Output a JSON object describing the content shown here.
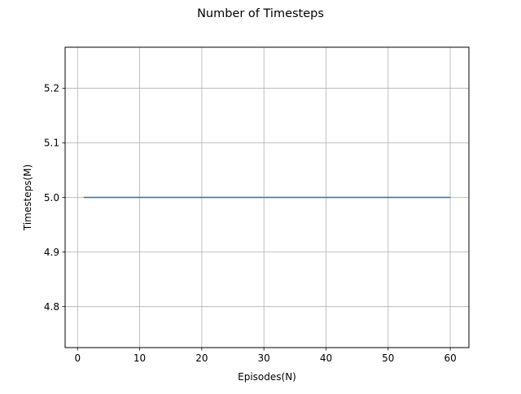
{
  "chart_data": {
    "type": "line",
    "title": "Number of Timesteps",
    "xlabel": "Episodes(N)",
    "ylabel": "Timesteps(M)",
    "xlim": [
      -2.0,
      63.0
    ],
    "ylim": [
      4.725,
      5.275
    ],
    "xticks": [
      0,
      10,
      20,
      30,
      40,
      50,
      60
    ],
    "xtick_labels": [
      "0",
      "10",
      "20",
      "30",
      "40",
      "50",
      "60"
    ],
    "yticks": [
      4.8,
      4.9,
      5.0,
      5.1,
      5.2
    ],
    "ytick_labels": [
      "4.8",
      "4.9",
      "5.0",
      "5.1",
      "5.2"
    ],
    "grid": true,
    "legend": "none",
    "series": [
      {
        "color": "#1f77b4",
        "x": [
          1,
          60
        ],
        "y": [
          5.0,
          5.0
        ]
      }
    ]
  }
}
